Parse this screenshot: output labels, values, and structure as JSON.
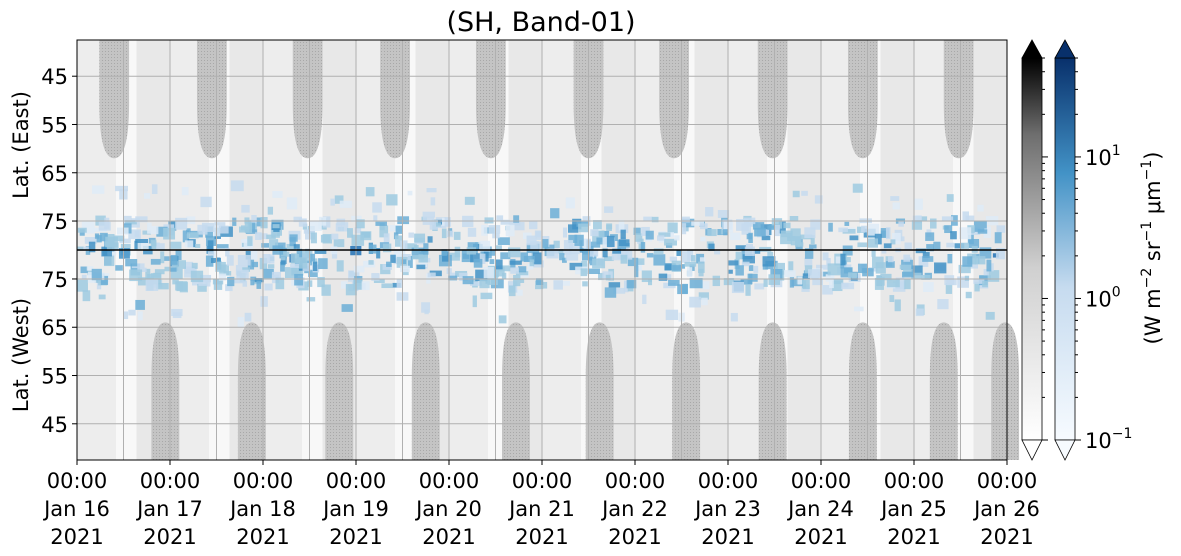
{
  "chart_data": {
    "type": "heatmap",
    "title": "(SH, Band-01)",
    "x_axis": {
      "ticks": [
        {
          "time": "00:00",
          "date": "Jan 16",
          "year": "2021"
        },
        {
          "time": "00:00",
          "date": "Jan 17",
          "year": "2021"
        },
        {
          "time": "00:00",
          "date": "Jan 18",
          "year": "2021"
        },
        {
          "time": "00:00",
          "date": "Jan 19",
          "year": "2021"
        },
        {
          "time": "00:00",
          "date": "Jan 20",
          "year": "2021"
        },
        {
          "time": "00:00",
          "date": "Jan 21",
          "year": "2021"
        },
        {
          "time": "00:00",
          "date": "Jan 22",
          "year": "2021"
        },
        {
          "time": "00:00",
          "date": "Jan 23",
          "year": "2021"
        },
        {
          "time": "00:00",
          "date": "Jan 24",
          "year": "2021"
        },
        {
          "time": "00:00",
          "date": "Jan 25",
          "year": "2021"
        },
        {
          "time": "00:00",
          "date": "Jan 26",
          "year": "2021"
        }
      ],
      "range": [
        "2021-01-16 00:00",
        "2021-01-26 00:00"
      ]
    },
    "y_axis_top": {
      "label": "Lat. (East)",
      "ticks": [
        "45",
        "55",
        "65",
        "75"
      ],
      "range": [
        37.5,
        81
      ]
    },
    "y_axis_bottom": {
      "label": "Lat. (West)",
      "ticks": [
        "75",
        "65",
        "55",
        "45"
      ],
      "range": [
        81,
        37.5
      ]
    },
    "colorbar": {
      "label_main": "(W m",
      "label_exp1": "−2",
      "label_mid": " sr",
      "label_exp2": "−1",
      "label_mu": " μm",
      "label_exp3": "−1",
      "label_end": ")",
      "scale": "log",
      "ticks": [
        {
          "base": "10",
          "exp": "1",
          "value": 10
        },
        {
          "base": "10",
          "exp": "0",
          "value": 1
        },
        {
          "base": "10",
          "exp": "−1",
          "value": 0.1
        }
      ],
      "range": [
        0.1,
        50
      ],
      "extend": "both",
      "colormaps": [
        "Greys",
        "Blues"
      ]
    },
    "grid": true,
    "colors": {
      "blue_dark": "#08306b",
      "blue_mid": "#2171b5",
      "blue_light": "#c6dbef",
      "grey_mask": "#bdbdbd",
      "grey_dark": "#000000"
    }
  }
}
